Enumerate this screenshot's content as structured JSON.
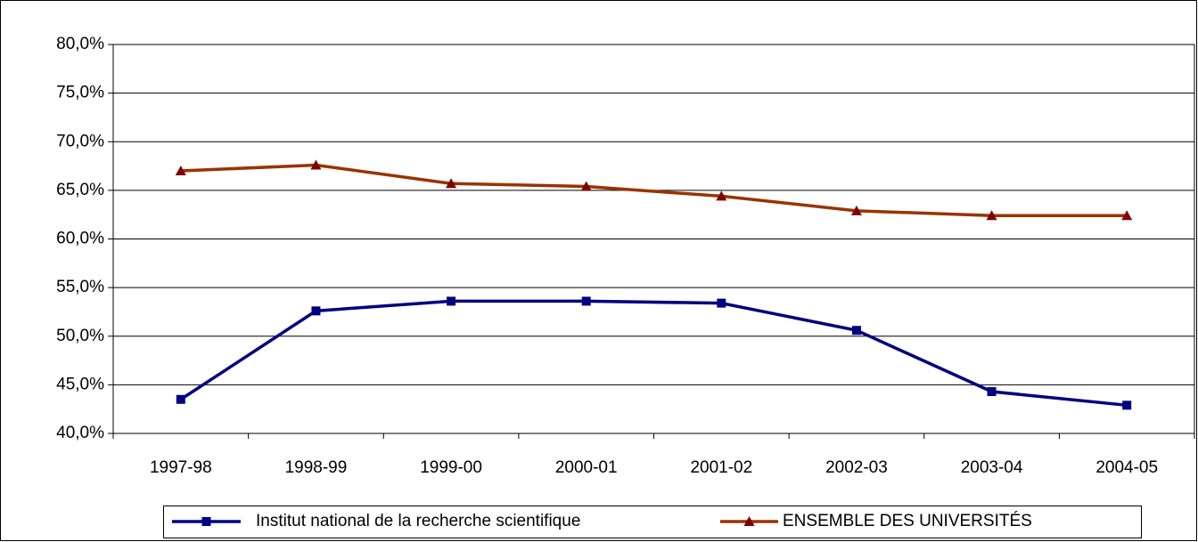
{
  "chart_data": {
    "type": "line",
    "categories": [
      "1997-98",
      "1998-99",
      "1999-00",
      "2000-01",
      "2001-02",
      "2002-03",
      "2003-04",
      "2004-05"
    ],
    "series": [
      {
        "name": "Institut national de la recherche scientifique",
        "color": "#000080",
        "marker": "square",
        "values": [
          43.5,
          52.6,
          53.6,
          53.6,
          53.4,
          50.6,
          44.3,
          42.9
        ]
      },
      {
        "name": "ENSEMBLE DES UNIVERSITÉS",
        "color": "#993300",
        "marker": "triangle",
        "values": [
          67.0,
          67.6,
          65.7,
          65.4,
          64.4,
          62.9,
          62.4,
          62.4
        ]
      }
    ],
    "ylim": [
      40,
      80
    ],
    "yticks": [
      {
        "value": 40,
        "label": "40,0%"
      },
      {
        "value": 45,
        "label": "45,0%"
      },
      {
        "value": 50,
        "label": "50,0%"
      },
      {
        "value": 55,
        "label": "55,0%"
      },
      {
        "value": 60,
        "label": "60,0%"
      },
      {
        "value": 65,
        "label": "65,0%"
      },
      {
        "value": 70,
        "label": "70,0%"
      },
      {
        "value": 75,
        "label": "75,0%"
      },
      {
        "value": 80,
        "label": "80,0%"
      }
    ],
    "grid": true,
    "legend": "bottom"
  }
}
